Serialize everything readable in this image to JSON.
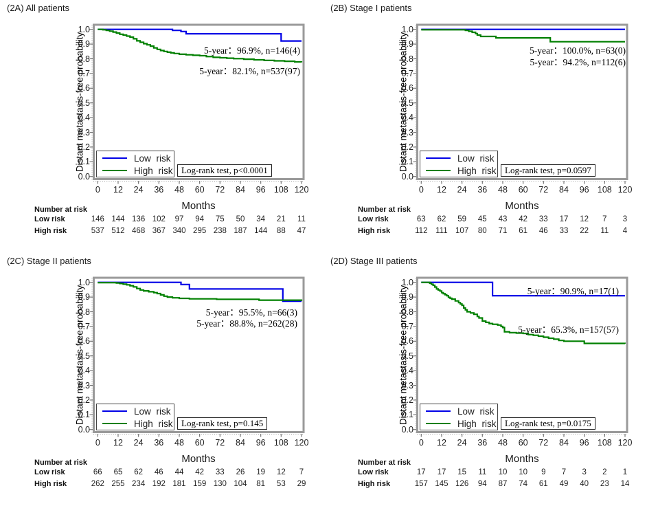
{
  "colors": {
    "low_risk": "#0000e6",
    "high_risk": "#008000",
    "frame": "#9a9a9a"
  },
  "legend": {
    "low_label": "Low risk",
    "high_label": "High risk",
    "position": "bottom-left-inside"
  },
  "labels": {
    "number_at_risk": "Number at risk"
  },
  "axis": {
    "x_label": "Months",
    "y_label": "Distant metastasis-free probability",
    "x_ticks": [
      0,
      12,
      24,
      36,
      48,
      60,
      72,
      84,
      96,
      108,
      120
    ],
    "y_ticks": [
      "1.0",
      "0.9",
      "0.8",
      "0.7",
      "0.6",
      "0.5",
      "0.4",
      "0.3",
      "0.2",
      "0.1",
      "0.0"
    ],
    "xlim": [
      0,
      120
    ],
    "ylim": [
      0.0,
      1.0
    ],
    "grid": false
  },
  "chart_data": [
    {
      "type": "line",
      "subtype": "kaplan-meier-step",
      "title": "(2A) All patients",
      "xlabel": "Months",
      "ylabel": "Distant metastasis-free probability",
      "logrank": "Log-rank test, p<0.0001",
      "annotations": [
        {
          "text": "5-year：96.9%, n=146(4)"
        },
        {
          "text": "5-year：82.1%, n=537(97)"
        }
      ],
      "series": [
        {
          "name": "Low risk",
          "color_key": "low_risk",
          "points": [
            [
              0,
              1.0
            ],
            [
              44,
              0.993
            ],
            [
              49,
              0.985
            ],
            [
              52,
              0.97
            ],
            [
              108,
              0.921
            ],
            [
              120,
              0.921
            ]
          ]
        },
        {
          "name": "High risk",
          "color_key": "high_risk",
          "points": [
            [
              0,
              1.0
            ],
            [
              3,
              0.997
            ],
            [
              5,
              0.993
            ],
            [
              7,
              0.988
            ],
            [
              9,
              0.982
            ],
            [
              11,
              0.975
            ],
            [
              13,
              0.967
            ],
            [
              15,
              0.961
            ],
            [
              17,
              0.954
            ],
            [
              19,
              0.947
            ],
            [
              21,
              0.936
            ],
            [
              23,
              0.922
            ],
            [
              25,
              0.912
            ],
            [
              27,
              0.903
            ],
            [
              29,
              0.895
            ],
            [
              31,
              0.886
            ],
            [
              33,
              0.874
            ],
            [
              35,
              0.864
            ],
            [
              37,
              0.856
            ],
            [
              39,
              0.85
            ],
            [
              41,
              0.845
            ],
            [
              43,
              0.84
            ],
            [
              45,
              0.836
            ],
            [
              48,
              0.831
            ],
            [
              52,
              0.827
            ],
            [
              56,
              0.824
            ],
            [
              60,
              0.821
            ],
            [
              64,
              0.815
            ],
            [
              68,
              0.81
            ],
            [
              72,
              0.807
            ],
            [
              76,
              0.804
            ],
            [
              80,
              0.801
            ],
            [
              86,
              0.797
            ],
            [
              92,
              0.793
            ],
            [
              98,
              0.789
            ],
            [
              104,
              0.786
            ],
            [
              110,
              0.783
            ],
            [
              116,
              0.779
            ],
            [
              120,
              0.776
            ]
          ]
        }
      ],
      "risk_table": {
        "rows": [
          {
            "label": "Low risk",
            "values": [
              146,
              144,
              136,
              102,
              97,
              94,
              75,
              50,
              34,
              21,
              11
            ]
          },
          {
            "label": "High risk",
            "values": [
              537,
              512,
              468,
              367,
              340,
              295,
              238,
              187,
              144,
              88,
              47
            ]
          }
        ]
      }
    },
    {
      "type": "line",
      "subtype": "kaplan-meier-step",
      "title": "(2B) Stage I patients",
      "xlabel": "Months",
      "ylabel": "Distant metastasis-free probability",
      "logrank": "Log-rank test, p=0.0597",
      "annotations": [
        {
          "text": "5-year：100.0%, n=63(0)"
        },
        {
          "text": "5-year：94.2%, n=112(6)"
        }
      ],
      "series": [
        {
          "name": "Low risk",
          "color_key": "low_risk",
          "points": [
            [
              0,
              1.0
            ],
            [
              120,
              1.0
            ]
          ]
        },
        {
          "name": "High risk",
          "color_key": "high_risk",
          "points": [
            [
              0,
              0.997
            ],
            [
              26,
              0.993
            ],
            [
              28,
              0.987
            ],
            [
              30,
              0.98
            ],
            [
              32,
              0.971
            ],
            [
              33,
              0.961
            ],
            [
              35,
              0.952
            ],
            [
              44,
              0.942
            ],
            [
              76,
              0.916
            ],
            [
              120,
              0.916
            ]
          ]
        }
      ],
      "risk_table": {
        "rows": [
          {
            "label": "Low risk",
            "values": [
              63,
              62,
              59,
              45,
              43,
              42,
              33,
              17,
              12,
              7,
              3
            ]
          },
          {
            "label": "High risk",
            "values": [
              112,
              111,
              107,
              80,
              71,
              61,
              46,
              33,
              22,
              11,
              4
            ]
          }
        ]
      }
    },
    {
      "type": "line",
      "subtype": "kaplan-meier-step",
      "title": "(2C) Stage II patients",
      "xlabel": "Months",
      "ylabel": "Distant metastasis-free probability",
      "logrank": "Log-rank test, p=0.145",
      "annotations": [
        {
          "text": "5-year：95.5%, n=66(3)"
        },
        {
          "text": "5-year：88.8%, n=262(28)"
        }
      ],
      "series": [
        {
          "name": "Low risk",
          "color_key": "low_risk",
          "points": [
            [
              0,
              1.0
            ],
            [
              49,
              0.985
            ],
            [
              54,
              0.955
            ],
            [
              109,
              0.872
            ],
            [
              120,
              0.872
            ]
          ]
        },
        {
          "name": "High risk",
          "color_key": "high_risk",
          "points": [
            [
              0,
              0.998
            ],
            [
              11,
              0.996
            ],
            [
              13,
              0.992
            ],
            [
              15,
              0.988
            ],
            [
              17,
              0.983
            ],
            [
              19,
              0.977
            ],
            [
              21,
              0.969
            ],
            [
              23,
              0.958
            ],
            [
              25,
              0.948
            ],
            [
              27,
              0.942
            ],
            [
              30,
              0.936
            ],
            [
              33,
              0.93
            ],
            [
              35,
              0.924
            ],
            [
              37,
              0.915
            ],
            [
              39,
              0.906
            ],
            [
              41,
              0.9
            ],
            [
              44,
              0.895
            ],
            [
              48,
              0.891
            ],
            [
              54,
              0.888
            ],
            [
              70,
              0.885
            ],
            [
              95,
              0.879
            ],
            [
              120,
              0.874
            ]
          ]
        }
      ],
      "risk_table": {
        "rows": [
          {
            "label": "Low risk",
            "values": [
              66,
              65,
              62,
              46,
              44,
              42,
              33,
              26,
              19,
              12,
              7
            ]
          },
          {
            "label": "High risk",
            "values": [
              262,
              255,
              234,
              192,
              181,
              159,
              130,
              104,
              81,
              53,
              29
            ]
          }
        ]
      }
    },
    {
      "type": "line",
      "subtype": "kaplan-meier-step",
      "title": "(2D) Stage III patients",
      "xlabel": "Months",
      "ylabel": "Distant metastasis-free probability",
      "logrank": "Log-rank test, p=0.0175",
      "annotations": [
        {
          "text": "5-year：90.9%, n=17(1)"
        },
        {
          "text": "5-year：65.3%, n=157(57)"
        }
      ],
      "series": [
        {
          "name": "Low risk",
          "color_key": "low_risk",
          "points": [
            [
              0,
              1.0
            ],
            [
              42,
              0.909
            ],
            [
              120,
              0.909
            ]
          ]
        },
        {
          "name": "High risk",
          "color_key": "high_risk",
          "points": [
            [
              0,
              1.0
            ],
            [
              5,
              0.994
            ],
            [
              6,
              0.987
            ],
            [
              7,
              0.98
            ],
            [
              8,
              0.968
            ],
            [
              9,
              0.955
            ],
            [
              10,
              0.948
            ],
            [
              11,
              0.941
            ],
            [
              12,
              0.93
            ],
            [
              13,
              0.923
            ],
            [
              14,
              0.916
            ],
            [
              15,
              0.909
            ],
            [
              16,
              0.898
            ],
            [
              17,
              0.892
            ],
            [
              18,
              0.886
            ],
            [
              20,
              0.874
            ],
            [
              22,
              0.862
            ],
            [
              23,
              0.853
            ],
            [
              24,
              0.844
            ],
            [
              25,
              0.826
            ],
            [
              26,
              0.813
            ],
            [
              27,
              0.8
            ],
            [
              29,
              0.792
            ],
            [
              31,
              0.783
            ],
            [
              33,
              0.768
            ],
            [
              34,
              0.758
            ],
            [
              36,
              0.737
            ],
            [
              38,
              0.728
            ],
            [
              40,
              0.72
            ],
            [
              42,
              0.715
            ],
            [
              45,
              0.71
            ],
            [
              47,
              0.7
            ],
            [
              48,
              0.693
            ],
            [
              49,
              0.664
            ],
            [
              52,
              0.658
            ],
            [
              56,
              0.655
            ],
            [
              60,
              0.653
            ],
            [
              63,
              0.645
            ],
            [
              66,
              0.64
            ],
            [
              69,
              0.634
            ],
            [
              72,
              0.627
            ],
            [
              75,
              0.62
            ],
            [
              78,
              0.614
            ],
            [
              81,
              0.605
            ],
            [
              84,
              0.6
            ],
            [
              96,
              0.585
            ],
            [
              120,
              0.583
            ]
          ]
        }
      ],
      "risk_table": {
        "rows": [
          {
            "label": "Low risk",
            "values": [
              17,
              17,
              15,
              11,
              10,
              10,
              9,
              7,
              3,
              2,
              1
            ]
          },
          {
            "label": "High risk",
            "values": [
              157,
              145,
              126,
              94,
              87,
              74,
              61,
              49,
              40,
              23,
              14
            ]
          }
        ]
      }
    }
  ]
}
